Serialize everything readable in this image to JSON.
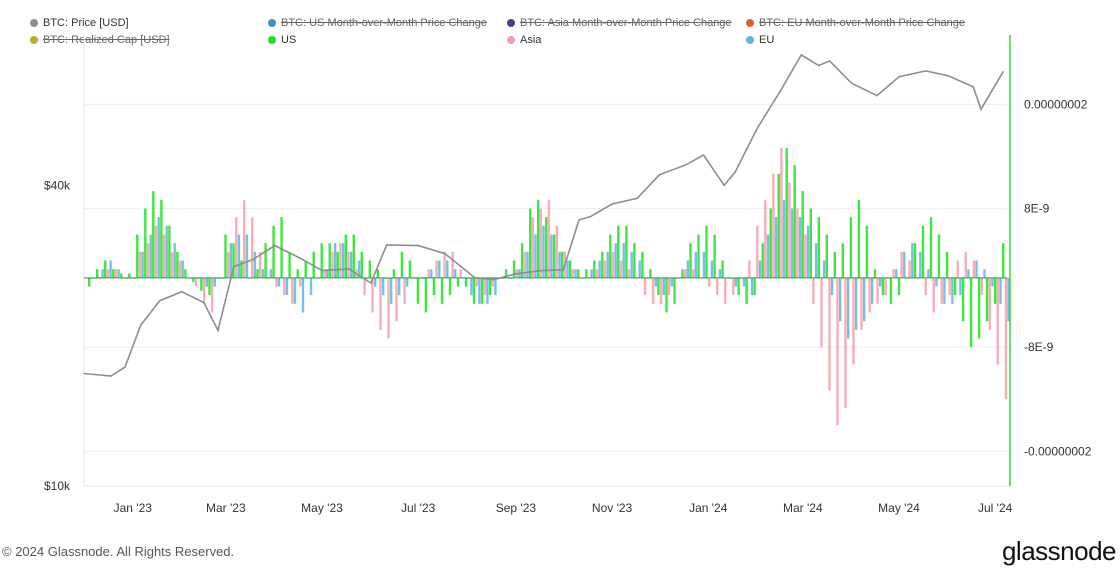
{
  "legend": [
    {
      "label": "BTC: Price [USD]",
      "color": "#8a8f8f",
      "enabled": true
    },
    {
      "label": "BTC: US Month-over-Month Price Change",
      "color": "#3d8fc4",
      "enabled": false
    },
    {
      "label": "BTC: Asia Month-over-Month Price Change",
      "color": "#4b3c8f",
      "enabled": false
    },
    {
      "label": "BTC: EU Month-over-Month Price Change",
      "color": "#d9622b",
      "enabled": false
    },
    {
      "label": "BTC: Realized Cap [USD]",
      "color": "#b9ad2a",
      "enabled": false
    },
    {
      "label": "US",
      "color": "#1fe01f",
      "enabled": true
    },
    {
      "label": "Asia",
      "color": "#f4a0a8",
      "enabled": true
    },
    {
      "label": "EU",
      "color": "#5bb8d9",
      "enabled": true
    }
  ],
  "footer": {
    "copyright": "© 2024 Glassnode. All Rights Reserved.",
    "brand": "glassnode"
  },
  "chart_data": {
    "type": "line+bar",
    "x_ticks": [
      "Jan '23",
      "Mar '23",
      "May '23",
      "Jul '23",
      "Sep '23",
      "Nov '23",
      "Jan '24",
      "Mar '24",
      "May '24",
      "Jul '24"
    ],
    "left_axis": {
      "label": "",
      "scale": "log",
      "ticks": [
        "$10k",
        "$40k"
      ],
      "tick_values": [
        10000,
        40000
      ],
      "range": [
        10000,
        80000
      ]
    },
    "right_axis": {
      "label": "",
      "ticks": [
        "0.00000002",
        "8E-9",
        "-8E-9",
        "-0.00000002"
      ],
      "tick_values": [
        2e-08,
        8e-09,
        -8e-09,
        -2e-08
      ],
      "range": [
        -2.4e-08,
        2.8e-08
      ]
    },
    "price_series": {
      "name": "BTC: Price [USD]",
      "color": "#8a8f8f",
      "x": [
        "2022-12-15",
        "2023-01-01",
        "2023-01-10",
        "2023-01-20",
        "2023-02-01",
        "2023-02-15",
        "2023-03-01",
        "2023-03-10",
        "2023-03-20",
        "2023-04-01",
        "2023-04-15",
        "2023-05-01",
        "2023-05-15",
        "2023-06-01",
        "2023-06-15",
        "2023-06-25",
        "2023-07-15",
        "2023-08-01",
        "2023-08-20",
        "2023-09-01",
        "2023-09-15",
        "2023-10-01",
        "2023-10-15",
        "2023-10-25",
        "2023-11-01",
        "2023-11-15",
        "2023-12-01",
        "2023-12-15",
        "2024-01-01",
        "2024-01-12",
        "2024-01-25",
        "2024-02-01",
        "2024-02-15",
        "2024-03-01",
        "2024-03-14",
        "2024-03-25",
        "2024-04-01",
        "2024-04-15",
        "2024-05-01",
        "2024-05-15",
        "2024-06-01",
        "2024-06-15",
        "2024-07-01",
        "2024-07-06",
        "2024-07-20"
      ],
      "y": [
        16800,
        16600,
        17300,
        21000,
        23500,
        24500,
        23300,
        20500,
        27500,
        28400,
        30300,
        28600,
        27000,
        27200,
        25500,
        30400,
        30300,
        29200,
        26100,
        25900,
        26600,
        27000,
        27100,
        34100,
        34600,
        36700,
        37700,
        42000,
        44000,
        46000,
        40000,
        42500,
        52000,
        62000,
        73000,
        69500,
        71000,
        64000,
        60500,
        66000,
        67800,
        66300,
        63000,
        56800,
        67500
      ]
    },
    "bar_series": [
      {
        "name": "US",
        "color": "#1fe01f",
        "unit": "1E-9",
        "values": [
          -1,
          1,
          2,
          1,
          0.5,
          0.5,
          5,
          8,
          10,
          9,
          6,
          3,
          1,
          -0.5,
          -1.5,
          -2,
          0,
          5,
          4,
          2,
          0,
          1,
          4,
          6,
          7,
          3,
          1,
          2,
          3,
          4,
          4,
          3,
          5,
          5,
          3,
          2,
          1,
          0,
          1,
          3,
          2,
          -3,
          -4,
          -2,
          -3,
          -2,
          -1,
          -1,
          -3,
          -3,
          -2,
          0,
          1,
          2,
          4,
          8,
          9,
          7,
          5,
          3,
          2,
          1,
          1,
          2,
          3,
          5,
          6,
          6,
          4,
          3,
          1,
          -2,
          -4,
          -3,
          1,
          4,
          5,
          6,
          5,
          2,
          0,
          -2,
          -3,
          -2,
          4,
          8,
          12,
          15,
          13,
          10,
          8,
          7,
          5,
          3,
          4,
          7,
          9,
          6,
          1,
          -2,
          -3,
          -2,
          0,
          4,
          6,
          7,
          5,
          3,
          -2,
          -5,
          -8,
          -7,
          -5,
          -3,
          4
        ]
      },
      {
        "name": "Asia",
        "color": "#f4a0a8",
        "unit": "1E-9",
        "values": [
          0,
          0,
          1,
          1,
          0,
          0,
          3,
          4,
          6,
          5,
          3,
          2,
          0,
          -1,
          -3,
          -4,
          0,
          3,
          7,
          9,
          7,
          3,
          0,
          -1,
          -2,
          -3,
          -1,
          0,
          0,
          1,
          3,
          4,
          3,
          1,
          -2,
          -4,
          -6,
          -7,
          -5,
          -3,
          0,
          0,
          1,
          2,
          3,
          3,
          1,
          0,
          -1,
          -2,
          -1,
          0,
          0,
          1,
          3,
          7,
          8,
          9,
          6,
          3,
          1,
          0,
          0,
          1,
          2,
          3,
          2,
          1,
          0,
          -2,
          -3,
          -3,
          -2,
          0,
          1,
          1,
          0,
          -1,
          -2,
          -3,
          -2,
          0,
          2,
          6,
          9,
          12,
          15,
          11,
          8,
          5,
          -3,
          -8,
          -13,
          -17,
          -15,
          -10,
          -6,
          -4,
          -3,
          -2,
          1,
          3,
          2,
          0,
          -2,
          -4,
          -3,
          -2,
          2,
          3,
          2,
          -2,
          -6,
          -10,
          -14,
          -12,
          -6
        ]
      },
      {
        "name": "EU",
        "color": "#5bb8d9",
        "unit": "1E-9",
        "values": [
          0,
          1,
          2,
          1,
          0,
          0,
          3,
          5,
          7,
          6,
          4,
          2,
          0,
          0,
          -1,
          -1,
          0,
          4,
          5,
          5,
          3,
          1,
          1,
          -1,
          -2,
          -3,
          -4,
          -2,
          0,
          1,
          4,
          4,
          3,
          2,
          0,
          -1,
          -2,
          -3,
          -2,
          -1,
          0,
          0,
          1,
          2,
          2,
          1,
          0,
          -2,
          -3,
          -3,
          -2,
          0,
          0,
          1,
          3,
          5,
          6,
          5,
          3,
          2,
          1,
          0,
          1,
          2,
          3,
          4,
          4,
          3,
          2,
          0,
          -1,
          -2,
          -1,
          0,
          2,
          3,
          3,
          2,
          1,
          0,
          -1,
          -1,
          -2,
          2,
          5,
          7,
          9,
          8,
          7,
          6,
          4,
          2,
          -2,
          -5,
          -7,
          -6,
          -5,
          -3,
          -1,
          0,
          1,
          3,
          4,
          3,
          1,
          -1,
          -3,
          -3,
          -2,
          1,
          2,
          1,
          -1,
          -3,
          -5,
          -6,
          -4,
          -2
        ]
      }
    ],
    "grid": true
  }
}
